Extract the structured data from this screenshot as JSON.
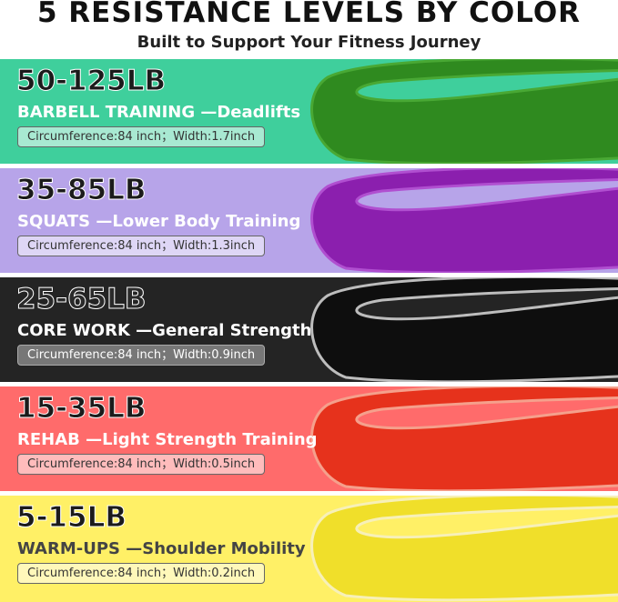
{
  "header": {
    "title": "5 RESISTANCE LEVELS BY COLOR",
    "subtitle": "Built to Support Your Fitness Journey"
  },
  "bands": [
    {
      "range": "50-125LB",
      "label": "BARBELL TRAINING —Deadlifts",
      "spec": "Circumference:84 inch；Width:1.7inch"
    },
    {
      "range": "35-85LB",
      "label": "SQUATS —Lower Body Training",
      "spec": "Circumference:84 inch；Width:1.3inch"
    },
    {
      "range": "25-65LB",
      "label": "CORE WORK —General Strength",
      "spec": "Circumference:84 inch；Width:0.9inch"
    },
    {
      "range": "15-35LB",
      "label": "REHAB —Light Strength Training",
      "spec": "Circumference:84 inch；Width:0.5inch"
    },
    {
      "range": "5-15LB",
      "label": "WARM-UPS —Shoulder Mobility",
      "spec": "Circumference:84 inch；Width:0.2inch"
    }
  ]
}
